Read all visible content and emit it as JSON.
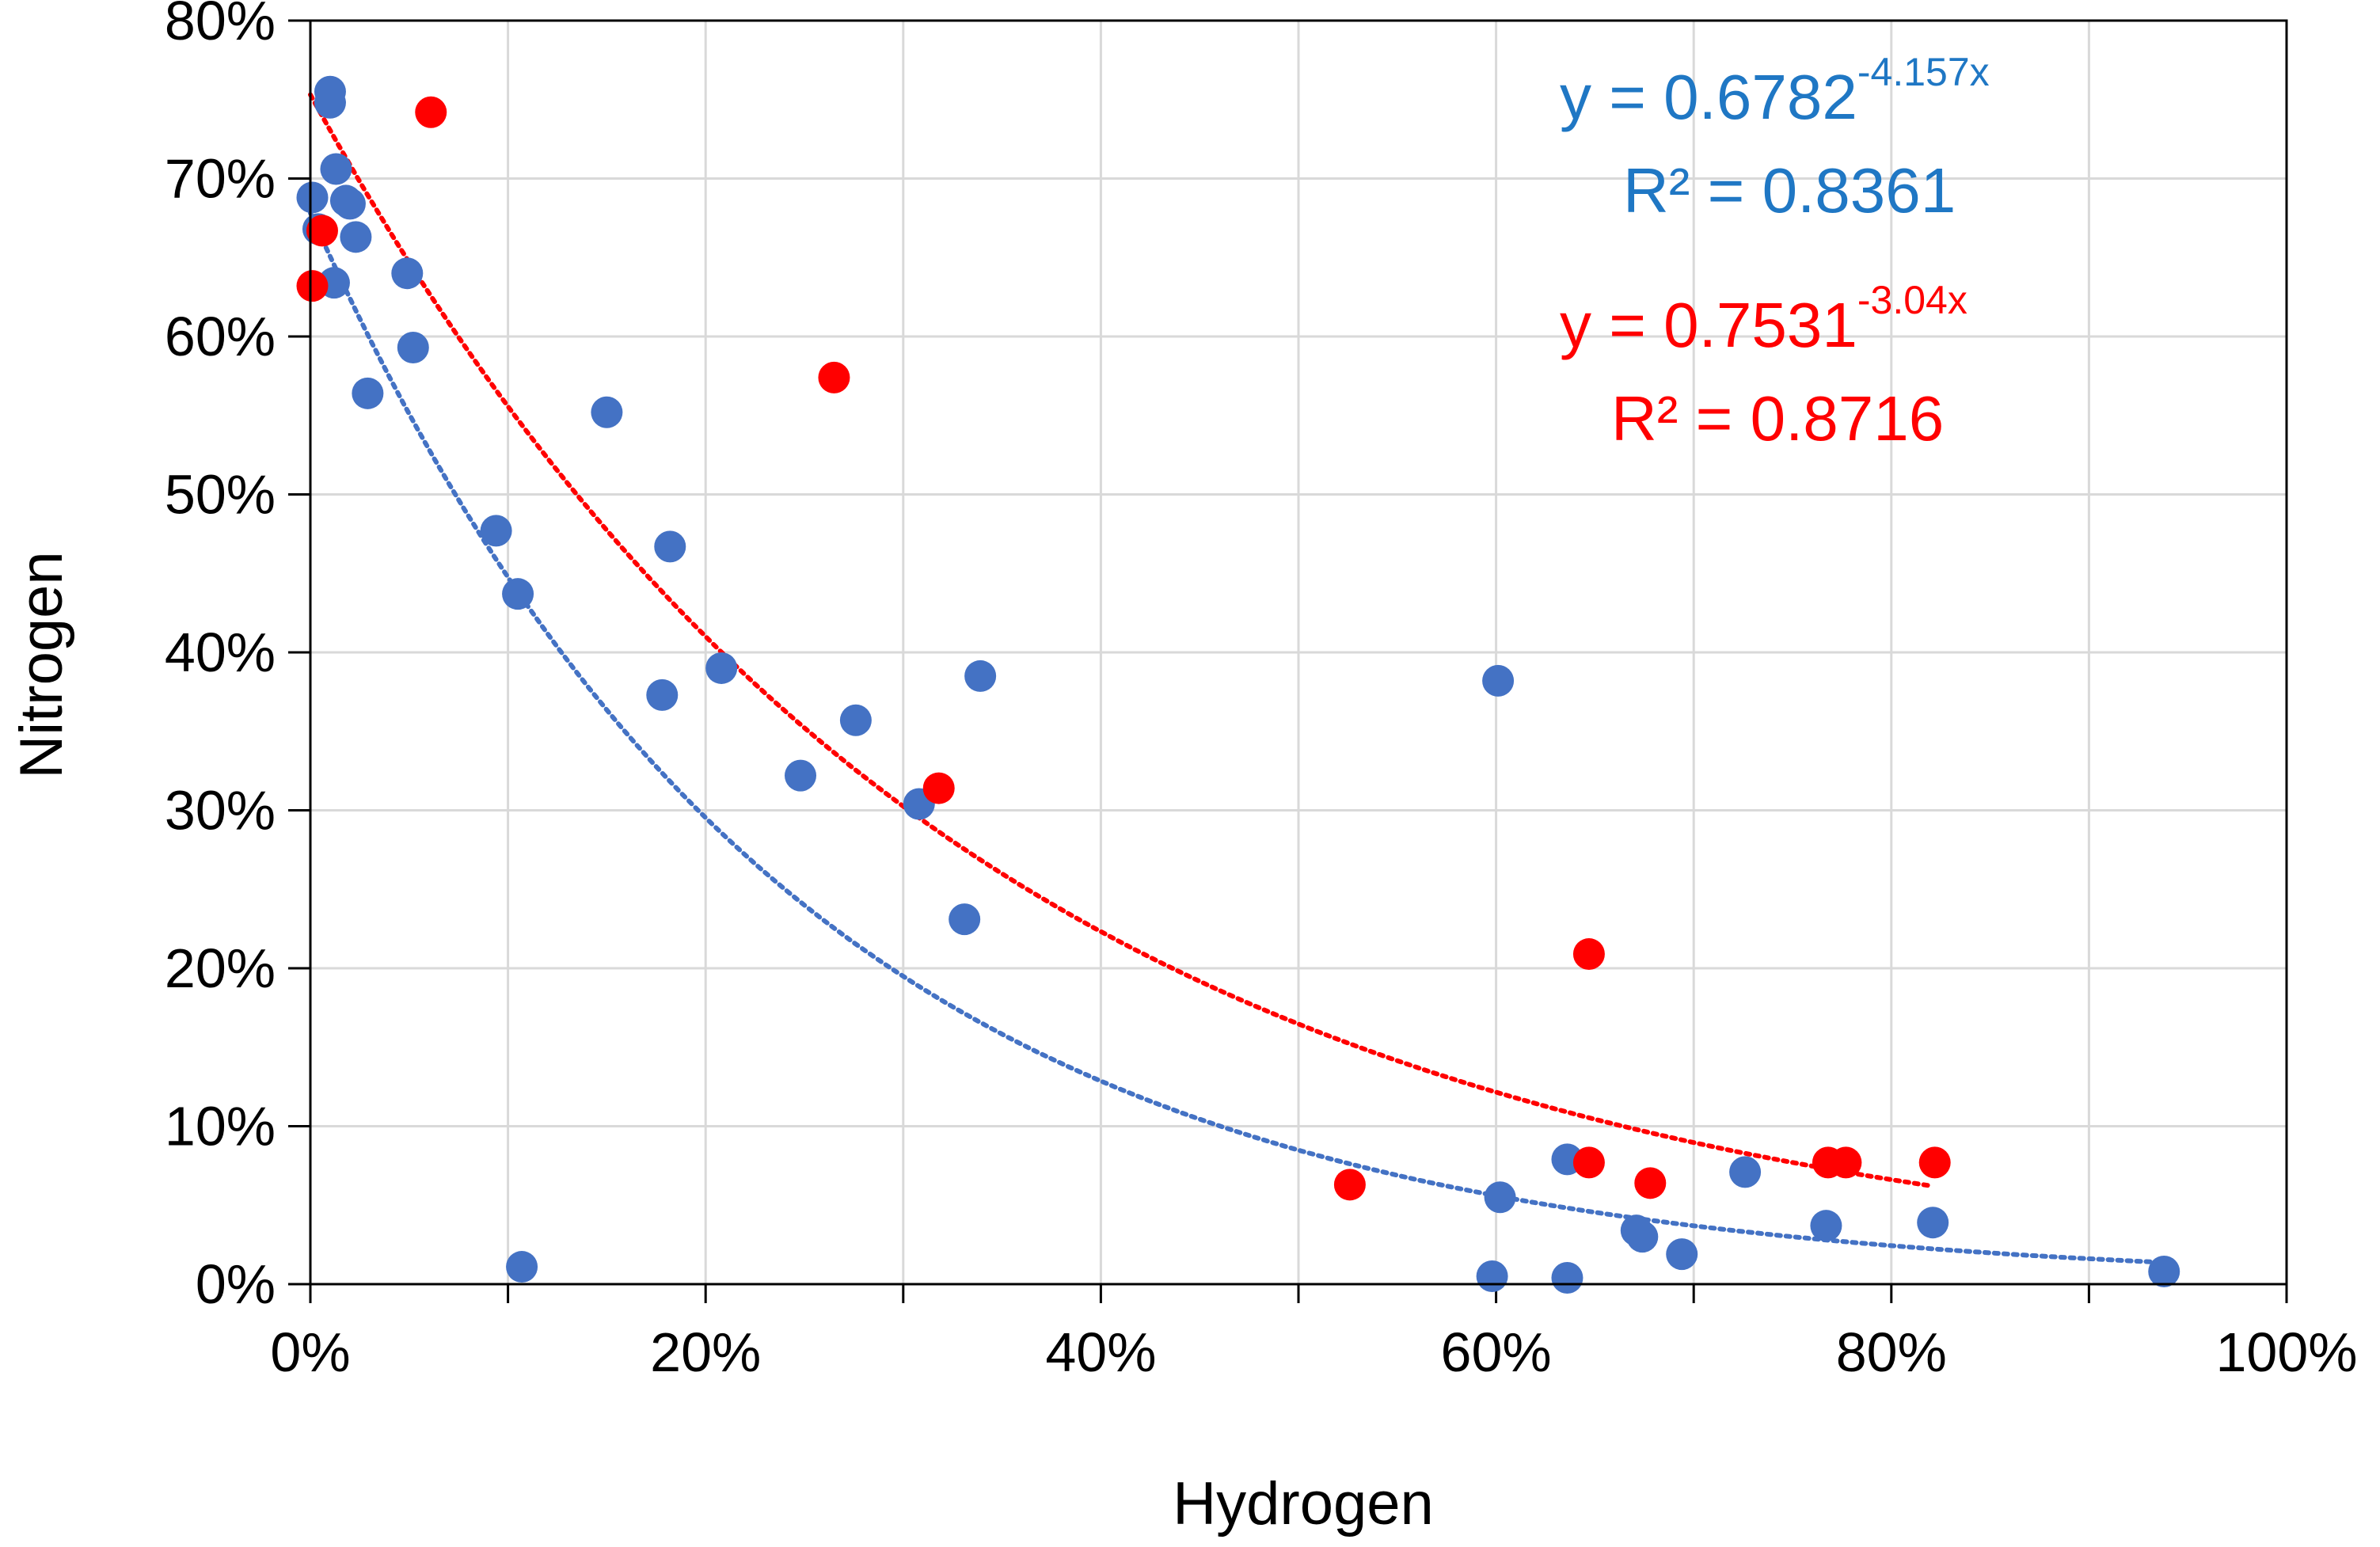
{
  "chart_data": {
    "type": "scatter",
    "title": "",
    "xlabel": "Hydrogen",
    "ylabel": "Nitrogen",
    "xlim": [
      0,
      1
    ],
    "ylim": [
      0,
      0.8
    ],
    "x_ticks": [
      0,
      0.2,
      0.4,
      0.6,
      0.8,
      1.0
    ],
    "x_tick_labels": [
      "0%",
      "20%",
      "40%",
      "60%",
      "80%",
      "100%"
    ],
    "y_ticks": [
      0,
      0.1,
      0.2,
      0.3,
      0.4,
      0.5,
      0.6,
      0.7,
      0.8
    ],
    "y_tick_labels": [
      "0%",
      "10%",
      "20%",
      "30%",
      "40%",
      "50%",
      "60%",
      "70%",
      "80%"
    ],
    "grid": true,
    "series": [
      {
        "name": "blue",
        "color": "#4472C4",
        "points": [
          [
            0.01,
            0.755
          ],
          [
            0.01,
            0.748
          ],
          [
            0.013,
            0.706
          ],
          [
            0.001,
            0.688
          ],
          [
            0.018,
            0.686
          ],
          [
            0.02,
            0.684
          ],
          [
            0.023,
            0.663
          ],
          [
            0.004,
            0.668
          ],
          [
            0.012,
            0.634
          ],
          [
            0.049,
            0.64
          ],
          [
            0.052,
            0.593
          ],
          [
            0.029,
            0.564
          ],
          [
            0.15,
            0.552
          ],
          [
            0.094,
            0.477
          ],
          [
            0.182,
            0.467
          ],
          [
            0.105,
            0.437
          ],
          [
            0.208,
            0.39
          ],
          [
            0.178,
            0.373
          ],
          [
            0.339,
            0.385
          ],
          [
            0.276,
            0.357
          ],
          [
            0.248,
            0.322
          ],
          [
            0.308,
            0.304
          ],
          [
            0.331,
            0.231
          ],
          [
            0.107,
            0.011
          ],
          [
            0.601,
            0.382
          ],
          [
            0.602,
            0.055
          ],
          [
            0.598,
            0.005
          ],
          [
            0.636,
            0.004
          ],
          [
            0.636,
            0.079
          ],
          [
            0.671,
            0.034
          ],
          [
            0.674,
            0.03
          ],
          [
            0.694,
            0.019
          ],
          [
            0.726,
            0.071
          ],
          [
            0.767,
            0.037
          ],
          [
            0.821,
            0.039
          ],
          [
            0.938,
            0.008
          ]
        ],
        "trendline": {
          "type": "exponential",
          "a": 0.6782,
          "b": -4.157,
          "x_range": [
            0,
            0.94
          ]
        },
        "equation": "y = 0.6782",
        "equation_exp": "-4.157x",
        "r_squared": "R² = 0.8361"
      },
      {
        "name": "red",
        "color": "#FF0000",
        "points": [
          [
            0.061,
            0.742
          ],
          [
            0.006,
            0.667
          ],
          [
            0.001,
            0.632
          ],
          [
            0.265,
            0.574
          ],
          [
            0.318,
            0.314
          ],
          [
            0.647,
            0.209
          ],
          [
            0.526,
            0.063
          ],
          [
            0.647,
            0.077
          ],
          [
            0.678,
            0.064
          ],
          [
            0.768,
            0.077
          ],
          [
            0.777,
            0.077
          ],
          [
            0.822,
            0.077
          ]
        ],
        "trendline": {
          "type": "exponential",
          "a": 0.7531,
          "b": -3.04,
          "x_range": [
            0,
            0.82
          ]
        },
        "equation": "y = 0.7531",
        "equation_exp": "-3.04x",
        "r_squared": "R² = 0.8716"
      }
    ]
  }
}
